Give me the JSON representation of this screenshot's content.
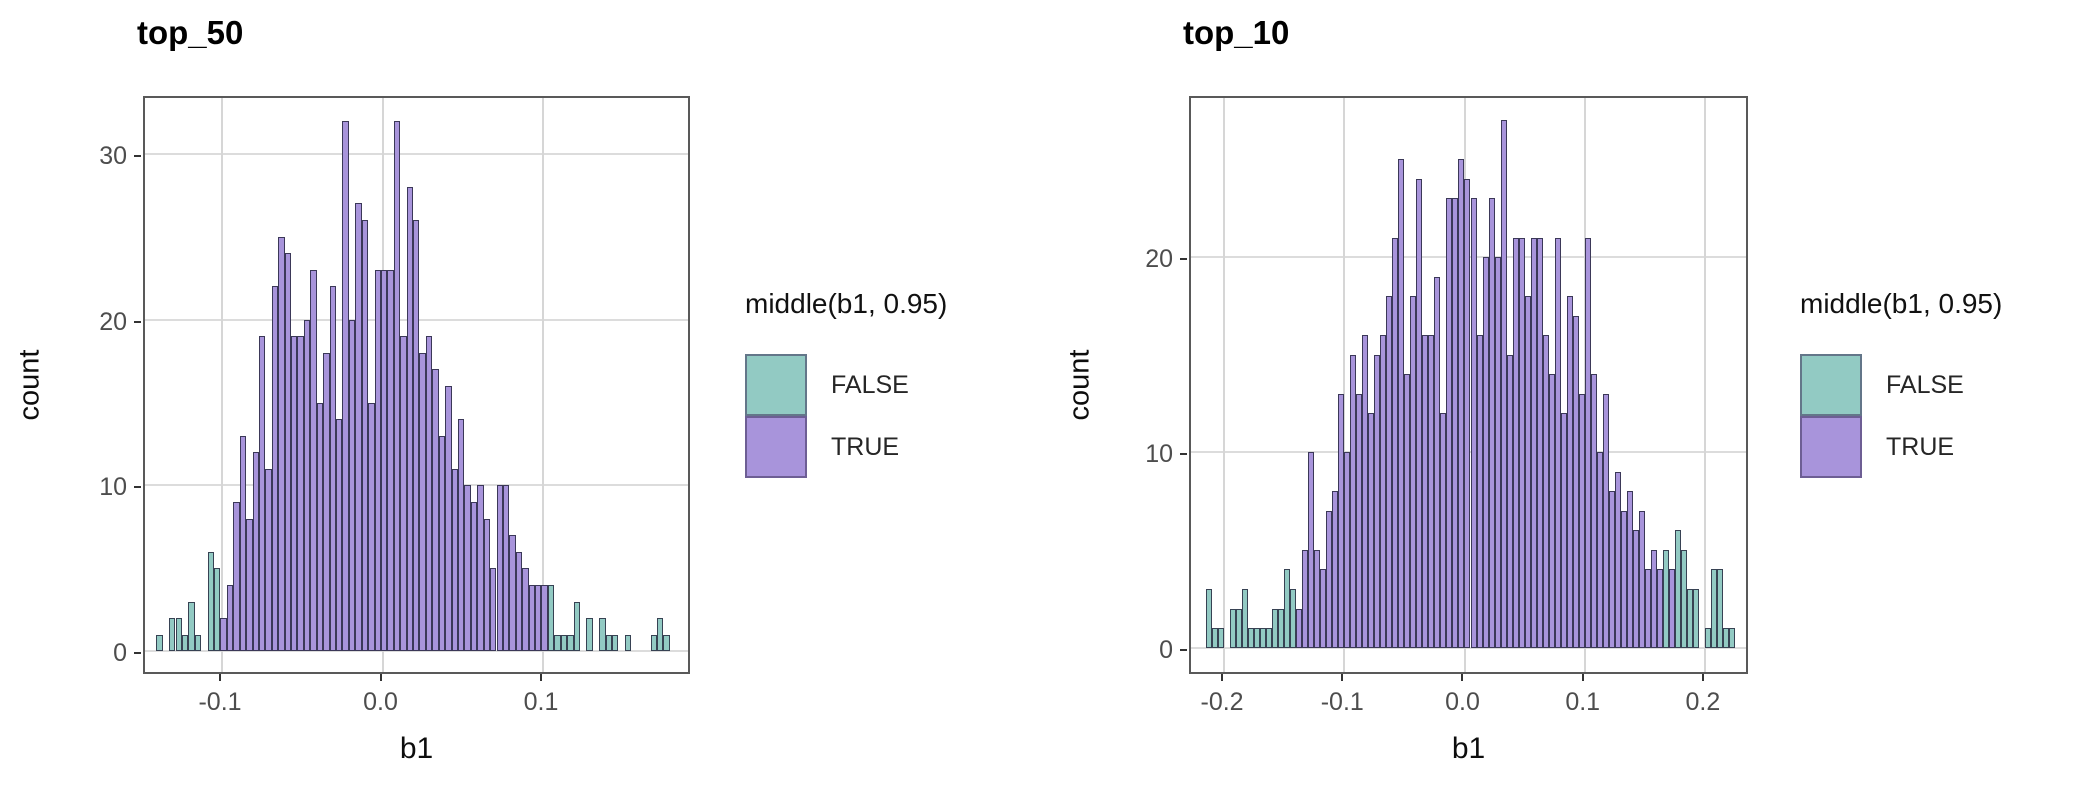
{
  "colors": {
    "false_fill": "#92CAC3",
    "true_fill": "#A894DB",
    "bar_border": "rgba(35,35,58,0.82)",
    "grid": "#DCDCDC",
    "panel_border": "#595959",
    "tick_text": "#4D4D4D",
    "axis_title_text": "#0D0D0D",
    "title_text": "#000000"
  },
  "chart_data": {
    "note": "two ggplot-style stacked histograms of bootstrap slope b1, fill = middle(b1, 0.95); counts estimated from pixels",
    "panels": [
      "top_50",
      "top_10"
    ]
  },
  "charts": [
    {
      "title": "top_50",
      "type": "histogram",
      "xlabel": "b1",
      "ylabel": "count",
      "xlim": [
        -0.148,
        0.1928
      ],
      "ylim": [
        -1.25,
        33.6
      ],
      "binwidth": 0.004,
      "grid": true,
      "xticks": [
        {
          "v": -0.1,
          "label": "-0.1"
        },
        {
          "v": 0.0,
          "label": "0.0"
        },
        {
          "v": 0.1,
          "label": "0.1"
        }
      ],
      "yticks": [
        {
          "v": 0,
          "label": "0"
        },
        {
          "v": 10,
          "label": "10"
        },
        {
          "v": 20,
          "label": "20"
        },
        {
          "v": 30,
          "label": "30"
        }
      ],
      "legend": {
        "title": "middle(b1, 0.95)",
        "entries": [
          {
            "label": "FALSE"
          },
          {
            "label": "TRUE"
          }
        ]
      },
      "bars": [
        [
          -0.139,
          1,
          "F"
        ],
        [
          -0.131,
          2,
          "F"
        ],
        [
          -0.127,
          2,
          "F"
        ],
        [
          -0.123,
          1,
          "F"
        ],
        [
          -0.119,
          3,
          "F"
        ],
        [
          -0.115,
          1,
          "F"
        ],
        [
          -0.107,
          6,
          "F"
        ],
        [
          -0.103,
          5,
          "F"
        ],
        [
          -0.099,
          2,
          "T"
        ],
        [
          -0.095,
          4,
          "T"
        ],
        [
          -0.091,
          9,
          "T"
        ],
        [
          -0.087,
          13,
          "T"
        ],
        [
          -0.083,
          8,
          "T"
        ],
        [
          -0.079,
          12,
          "T"
        ],
        [
          -0.075,
          19,
          "T"
        ],
        [
          -0.071,
          11,
          "T"
        ],
        [
          -0.067,
          22,
          "T"
        ],
        [
          -0.063,
          25,
          "T"
        ],
        [
          -0.059,
          24,
          "T"
        ],
        [
          -0.055,
          19,
          "T"
        ],
        [
          -0.051,
          19,
          "T"
        ],
        [
          -0.047,
          20,
          "T"
        ],
        [
          -0.043,
          23,
          "T"
        ],
        [
          -0.039,
          15,
          "T"
        ],
        [
          -0.035,
          18,
          "T"
        ],
        [
          -0.031,
          22,
          "T"
        ],
        [
          -0.027,
          14,
          "T"
        ],
        [
          -0.023,
          32,
          "T"
        ],
        [
          -0.019,
          20,
          "T"
        ],
        [
          -0.015,
          27,
          "T"
        ],
        [
          -0.011,
          26,
          "T"
        ],
        [
          -0.007,
          15,
          "T"
        ],
        [
          -0.003,
          23,
          "T"
        ],
        [
          0.001,
          23,
          "T"
        ],
        [
          0.005,
          23,
          "T"
        ],
        [
          0.009,
          32,
          "T"
        ],
        [
          0.013,
          19,
          "T"
        ],
        [
          0.017,
          28,
          "T"
        ],
        [
          0.021,
          26,
          "T"
        ],
        [
          0.025,
          18,
          "T"
        ],
        [
          0.029,
          19,
          "T"
        ],
        [
          0.033,
          17,
          "T"
        ],
        [
          0.037,
          13,
          "T"
        ],
        [
          0.041,
          16,
          "T"
        ],
        [
          0.045,
          11,
          "T"
        ],
        [
          0.049,
          14,
          "T"
        ],
        [
          0.053,
          10,
          "T"
        ],
        [
          0.057,
          9,
          "T"
        ],
        [
          0.061,
          10,
          "T"
        ],
        [
          0.065,
          8,
          "T"
        ],
        [
          0.069,
          5,
          "T"
        ],
        [
          0.073,
          10,
          "T"
        ],
        [
          0.077,
          10,
          "T"
        ],
        [
          0.081,
          7,
          "T"
        ],
        [
          0.085,
          6,
          "T"
        ],
        [
          0.089,
          5,
          "T"
        ],
        [
          0.093,
          4,
          "T"
        ],
        [
          0.097,
          4,
          "T"
        ],
        [
          0.101,
          4,
          "T"
        ],
        [
          0.105,
          4,
          "F"
        ],
        [
          0.109,
          1,
          "F"
        ],
        [
          0.113,
          1,
          "F"
        ],
        [
          0.117,
          1,
          "F"
        ],
        [
          0.121,
          3,
          "F"
        ],
        [
          0.129,
          2,
          "F"
        ],
        [
          0.137,
          2,
          "F"
        ],
        [
          0.141,
          1,
          "F"
        ],
        [
          0.145,
          1,
          "F"
        ],
        [
          0.153,
          1,
          "F"
        ],
        [
          0.169,
          1,
          "F"
        ],
        [
          0.173,
          2,
          "F"
        ],
        [
          0.177,
          1,
          "F"
        ]
      ]
    },
    {
      "title": "top_10",
      "type": "histogram",
      "xlabel": "b1",
      "ylabel": "count",
      "xlim": [
        -0.2275,
        0.2375
      ],
      "ylim": [
        -1.25,
        28.35
      ],
      "binwidth": 0.005,
      "grid": true,
      "xticks": [
        {
          "v": -0.2,
          "label": "-0.2"
        },
        {
          "v": -0.1,
          "label": "-0.1"
        },
        {
          "v": 0.0,
          "label": "0.0"
        },
        {
          "v": 0.1,
          "label": "0.1"
        },
        {
          "v": 0.2,
          "label": "0.2"
        }
      ],
      "yticks": [
        {
          "v": 0,
          "label": "0"
        },
        {
          "v": 10,
          "label": "10"
        },
        {
          "v": 20,
          "label": "20"
        }
      ],
      "legend": {
        "title": "middle(b1, 0.95)",
        "entries": [
          {
            "label": "FALSE"
          },
          {
            "label": "TRUE"
          }
        ]
      },
      "bars": [
        [
          -0.2125,
          3,
          "F"
        ],
        [
          -0.2075,
          1,
          "F"
        ],
        [
          -0.2025,
          1,
          "F"
        ],
        [
          -0.1925,
          2,
          "F"
        ],
        [
          -0.1875,
          2,
          "F"
        ],
        [
          -0.1825,
          3,
          "F"
        ],
        [
          -0.1775,
          1,
          "F"
        ],
        [
          -0.1725,
          1,
          "F"
        ],
        [
          -0.1675,
          1,
          "F"
        ],
        [
          -0.1625,
          1,
          "F"
        ],
        [
          -0.1575,
          2,
          "F"
        ],
        [
          -0.1525,
          2,
          "F"
        ],
        [
          -0.1475,
          4,
          "F"
        ],
        [
          -0.1425,
          3,
          "F"
        ],
        [
          -0.1375,
          2,
          "T"
        ],
        [
          -0.1325,
          5,
          "T"
        ],
        [
          -0.1275,
          10,
          "T"
        ],
        [
          -0.1225,
          5,
          "T"
        ],
        [
          -0.1175,
          4,
          "T"
        ],
        [
          -0.1125,
          7,
          "T"
        ],
        [
          -0.1075,
          8,
          "T"
        ],
        [
          -0.1025,
          13,
          "T"
        ],
        [
          -0.0975,
          10,
          "T"
        ],
        [
          -0.0925,
          15,
          "T"
        ],
        [
          -0.0875,
          13,
          "T"
        ],
        [
          -0.0825,
          16,
          "T"
        ],
        [
          -0.0775,
          12,
          "T"
        ],
        [
          -0.0725,
          15,
          "T"
        ],
        [
          -0.0675,
          16,
          "T"
        ],
        [
          -0.0625,
          18,
          "T"
        ],
        [
          -0.0575,
          21,
          "T"
        ],
        [
          -0.0525,
          25,
          "T"
        ],
        [
          -0.0475,
          14,
          "T"
        ],
        [
          -0.0425,
          18,
          "T"
        ],
        [
          -0.0375,
          24,
          "T"
        ],
        [
          -0.0325,
          16,
          "T"
        ],
        [
          -0.0275,
          16,
          "T"
        ],
        [
          -0.0225,
          19,
          "T"
        ],
        [
          -0.0175,
          12,
          "T"
        ],
        [
          -0.0125,
          23,
          "T"
        ],
        [
          -0.0075,
          23,
          "T"
        ],
        [
          -0.0025,
          25,
          "T"
        ],
        [
          0.0025,
          24,
          "T"
        ],
        [
          0.0075,
          23,
          "T"
        ],
        [
          0.0125,
          16,
          "T"
        ],
        [
          0.0175,
          20,
          "T"
        ],
        [
          0.0225,
          23,
          "T"
        ],
        [
          0.0275,
          20,
          "T"
        ],
        [
          0.0325,
          27,
          "T"
        ],
        [
          0.0375,
          15,
          "T"
        ],
        [
          0.0425,
          21,
          "T"
        ],
        [
          0.0475,
          21,
          "T"
        ],
        [
          0.0525,
          18,
          "T"
        ],
        [
          0.0575,
          21,
          "T"
        ],
        [
          0.0625,
          21,
          "T"
        ],
        [
          0.0675,
          16,
          "T"
        ],
        [
          0.0725,
          14,
          "T"
        ],
        [
          0.0775,
          21,
          "T"
        ],
        [
          0.0825,
          12,
          "T"
        ],
        [
          0.0875,
          18,
          "T"
        ],
        [
          0.0925,
          17,
          "T"
        ],
        [
          0.0975,
          13,
          "T"
        ],
        [
          0.1025,
          21,
          "T"
        ],
        [
          0.1075,
          14,
          "T"
        ],
        [
          0.1125,
          10,
          "T"
        ],
        [
          0.1175,
          13,
          "T"
        ],
        [
          0.1225,
          8,
          "T"
        ],
        [
          0.1275,
          9,
          "T"
        ],
        [
          0.1325,
          7,
          "T"
        ],
        [
          0.1375,
          8,
          "T"
        ],
        [
          0.1425,
          6,
          "T"
        ],
        [
          0.1475,
          7,
          "T"
        ],
        [
          0.1525,
          4,
          "T"
        ],
        [
          0.1575,
          5,
          "T"
        ],
        [
          0.1625,
          4,
          "T"
        ],
        [
          0.1675,
          5,
          "F"
        ],
        [
          0.1725,
          4,
          "T"
        ],
        [
          0.1775,
          6,
          "F"
        ],
        [
          0.1825,
          5,
          "F"
        ],
        [
          0.1875,
          3,
          "F"
        ],
        [
          0.1925,
          3,
          "F"
        ],
        [
          0.2025,
          1,
          "F"
        ],
        [
          0.2075,
          4,
          "F"
        ],
        [
          0.2125,
          4,
          "F"
        ],
        [
          0.2175,
          1,
          "F"
        ],
        [
          0.2225,
          1,
          "F"
        ]
      ]
    }
  ]
}
